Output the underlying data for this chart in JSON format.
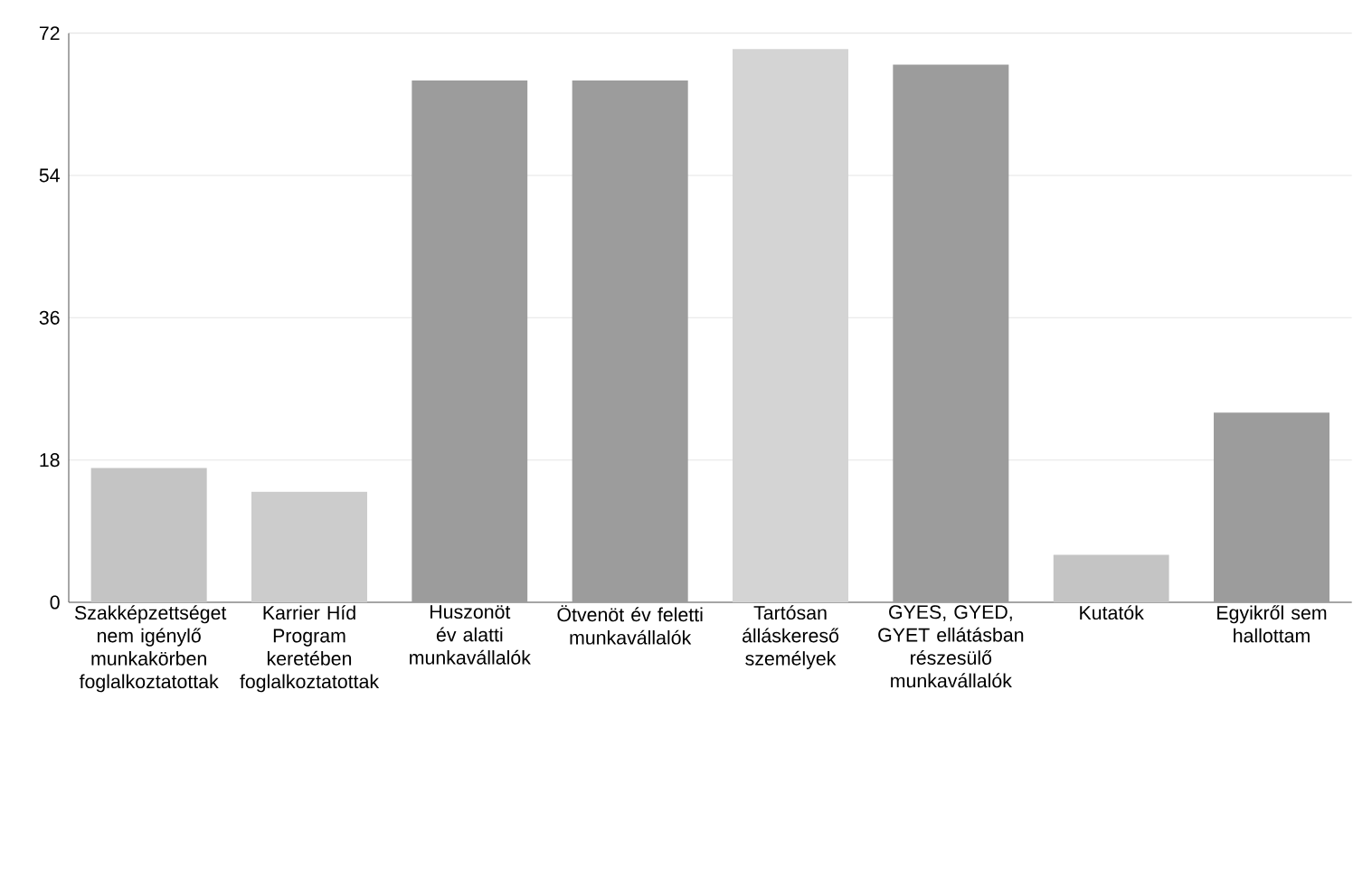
{
  "chart_data": {
    "type": "bar",
    "categories": [
      "Szakképzettséget nem igénylő munkakörben foglalkoztatottak",
      "Karrier Híd Program keretében foglalkoztatottak",
      "Huszonöt év alatti munkavállalók",
      "Ötvenöt év feletti munkavállalók",
      "Tartósan álláskereső személyek",
      "GYES, GYED, GYET ellátásban részesülő munkavállalók",
      "Kutatók",
      "Egyikről sem hallottam"
    ],
    "values": [
      17,
      14,
      66,
      66,
      70,
      68,
      6,
      24
    ],
    "colors": [
      "#c4c4c4",
      "#cccccc",
      "#9c9c9c",
      "#9c9c9c",
      "#d4d4d4",
      "#9c9c9c",
      "#c4c4c4",
      "#9c9c9c"
    ],
    "ylim": [
      0,
      72
    ],
    "yticks": [
      0,
      18,
      36,
      54,
      72
    ],
    "grid": "y"
  }
}
